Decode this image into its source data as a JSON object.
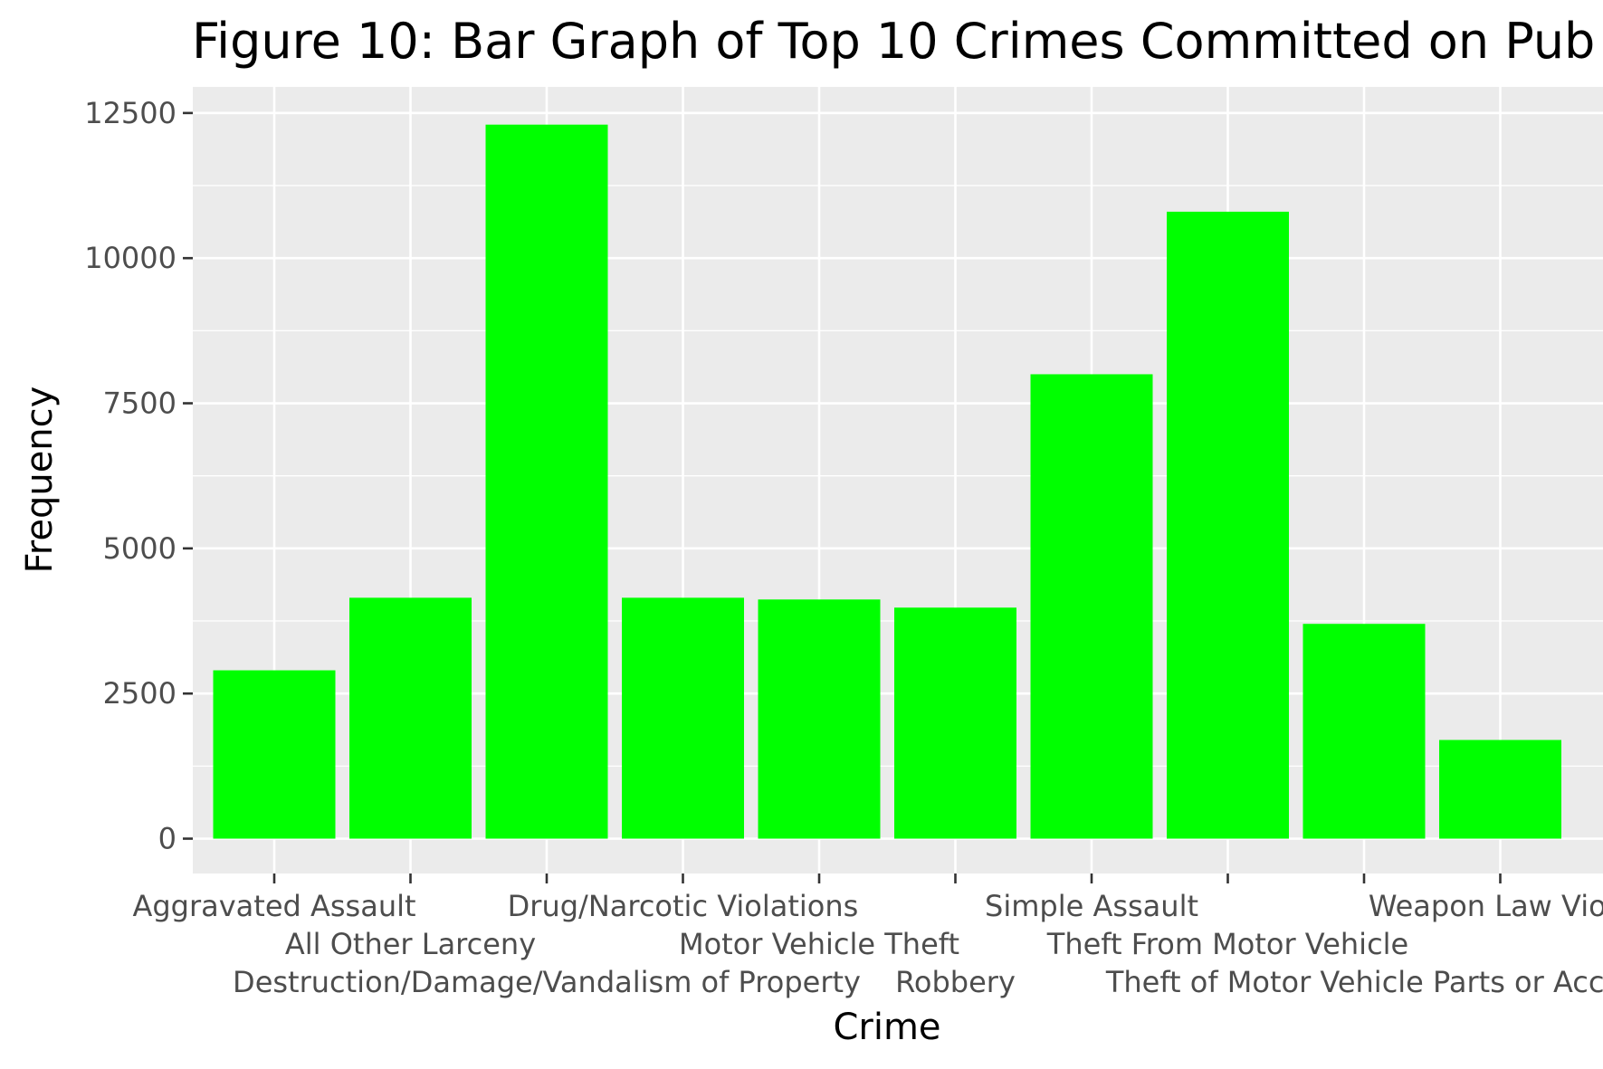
{
  "chart_data": {
    "type": "bar",
    "title": "Figure 10: Bar Graph of Top 10 Crimes Committed on Pub",
    "xlabel": "Crime",
    "ylabel": "Frequency",
    "categories": [
      "Aggravated Assault",
      "All Other Larceny",
      "Destruction/Damage/Vandalism of Property",
      "Drug/Narcotic Violations",
      "Motor Vehicle Theft",
      "Robbery",
      "Simple Assault",
      "Theft From Motor Vehicle",
      "Theft of Motor Vehicle Parts or Acce",
      "Weapon Law Viola"
    ],
    "values": [
      2900,
      4150,
      12300,
      4150,
      4120,
      3980,
      8000,
      10800,
      3700,
      1700
    ],
    "ylim": [
      -600,
      12950
    ],
    "yticks": [
      0,
      2500,
      5000,
      7500,
      10000,
      12500
    ],
    "ytick_labels": [
      "0",
      "2500",
      "5000",
      "7500",
      "10000",
      "12500"
    ],
    "grid": true,
    "colors": {
      "bar": "#00ff00",
      "panel": "#ebebeb",
      "grid": "#ffffff",
      "tick_text": "#4d4d4d",
      "tick_mark": "#333333"
    }
  }
}
